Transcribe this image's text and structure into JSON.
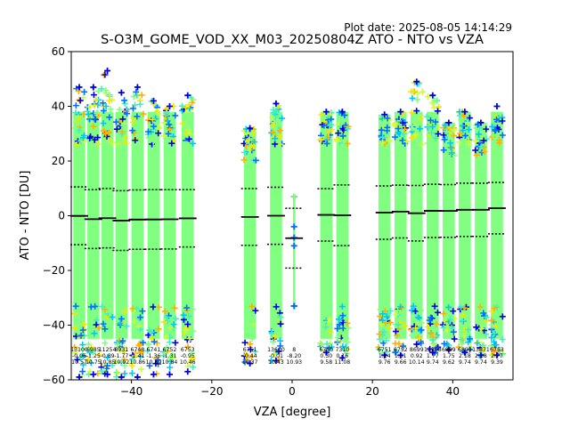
{
  "plot_date": "Plot date: 2025-08-05 14:14:29",
  "colors": {
    "scale": [
      "#0000e0",
      "#0070ff",
      "#00c8f0",
      "#40f0c0",
      "#80ff80",
      "#c8ff40",
      "#f0e800",
      "#ffb000"
    ],
    "background": "#ffffff",
    "line": "#000000"
  },
  "chart_data": {
    "type": "scatter",
    "title": "S-O3M_GOME_VOD_XX_M03_20250804Z ATO - NTO vs VZA",
    "xlabel": "VZA [degree]",
    "ylabel": "ATO - NTO [DU]",
    "xlim": [
      -55,
      55
    ],
    "ylim": [
      -60,
      60
    ],
    "xticks": [
      -40,
      -20,
      0,
      20,
      40
    ],
    "yticks": [
      -60,
      -40,
      -20,
      0,
      20,
      40,
      60
    ],
    "xtick_labels": [
      "−40",
      "−20",
      "0",
      "20",
      "40"
    ],
    "ytick_labels": [
      "−60",
      "−40",
      "−20",
      "0",
      "20",
      "40",
      "60"
    ],
    "grid": false,
    "legend": "none",
    "bins": [
      {
        "x": -53.0,
        "top": 47,
        "bottom": -59,
        "count": "13100",
        "mean": "-0.06",
        "std": "10.57"
      },
      {
        "x": -49.5,
        "top": 47,
        "bottom": -58,
        "count": "6985",
        "mean": "-1.25",
        "std": "10.75"
      },
      {
        "x": -46.0,
        "top": 53,
        "bottom": -58,
        "count": "11254",
        "mean": "-0.89",
        "std": "10.85"
      },
      {
        "x": -42.5,
        "top": 45,
        "bottom": -59,
        "count": "8931",
        "mean": "-1.77",
        "std": "10.92"
      },
      {
        "x": -38.5,
        "top": 47,
        "bottom": -59,
        "count": "6748",
        "mean": "-1.41",
        "std": "10.86"
      },
      {
        "x": -34.5,
        "top": 42,
        "bottom": -58,
        "count": "6741",
        "mean": "-1.36",
        "std": "10.89"
      },
      {
        "x": -30.5,
        "top": 40,
        "bottom": -58,
        "count": "6752",
        "mean": "-1.31",
        "std": "10.84"
      },
      {
        "x": -26.0,
        "top": 44,
        "bottom": -57,
        "count": "6753",
        "mean": "-0.95",
        "std": "10.46"
      },
      {
        "x": -10.5,
        "top": 32,
        "bottom": -54,
        "count": "6751",
        "mean": "-0.44",
        "std": "10.37"
      },
      {
        "x": -4.0,
        "top": 41,
        "bottom": -53,
        "count": "13600",
        "mean": "-0.01",
        "std": "10.43"
      },
      {
        "x": 0.5,
        "top": 7,
        "bottom": -33,
        "count": "8",
        "mean": "-8.20",
        "std": "10.93"
      },
      {
        "x": 8.5,
        "top": 38,
        "bottom": -50,
        "count": "6750",
        "mean": "0.30",
        "std": "9.58"
      },
      {
        "x": 12.5,
        "top": 38,
        "bottom": -52,
        "count": "7310",
        "mean": "0.16",
        "std": "11.08"
      },
      {
        "x": 23.0,
        "top": 37,
        "bottom": -51,
        "count": "6751",
        "mean": "1.14",
        "std": "9.76"
      },
      {
        "x": 27.0,
        "top": 38,
        "bottom": -51,
        "count": "6752",
        "mean": "1.51",
        "std": "9.66"
      },
      {
        "x": 31.0,
        "top": 49,
        "bottom": -47,
        "count": "8699",
        "mean": "0.92",
        "std": "10.14"
      },
      {
        "x": 35.0,
        "top": 44,
        "bottom": -50,
        "count": "12368",
        "mean": "1.77",
        "std": "9.74"
      },
      {
        "x": 39.0,
        "top": 34,
        "bottom": -49,
        "count": "6899",
        "mean": "1.75",
        "std": "9.62"
      },
      {
        "x": 43.0,
        "top": 38,
        "bottom": -50,
        "count": "6899",
        "mean": "2.18",
        "std": "9.74"
      },
      {
        "x": 47.0,
        "top": 34,
        "bottom": -51,
        "count": "13871",
        "mean": "2.18",
        "std": "9.74"
      },
      {
        "x": 51.0,
        "top": 40,
        "bottom": -51,
        "count": "6753",
        "mean": "2.77",
        "std": "9.39"
      }
    ]
  }
}
